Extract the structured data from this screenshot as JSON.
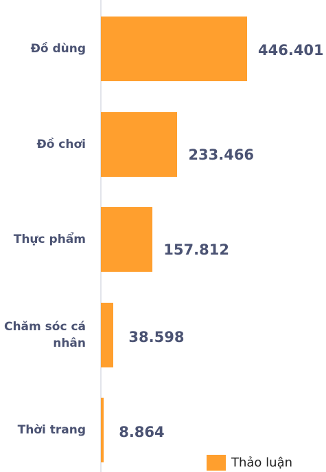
{
  "chart_data": {
    "type": "bar",
    "orientation": "horizontal",
    "categories": [
      "Đồ dùng",
      "Đồ chơi",
      "Thực phẩm",
      "Chăm sóc cá nhân",
      "Thời trang"
    ],
    "series": [
      {
        "name": "Thảo luận",
        "color": "#ff9f2e",
        "values": [
          446401,
          233466,
          157812,
          38598,
          8864
        ],
        "value_labels": [
          "446.401",
          "233.466",
          "157.812",
          "38.598",
          "8.864"
        ]
      }
    ]
  }
}
